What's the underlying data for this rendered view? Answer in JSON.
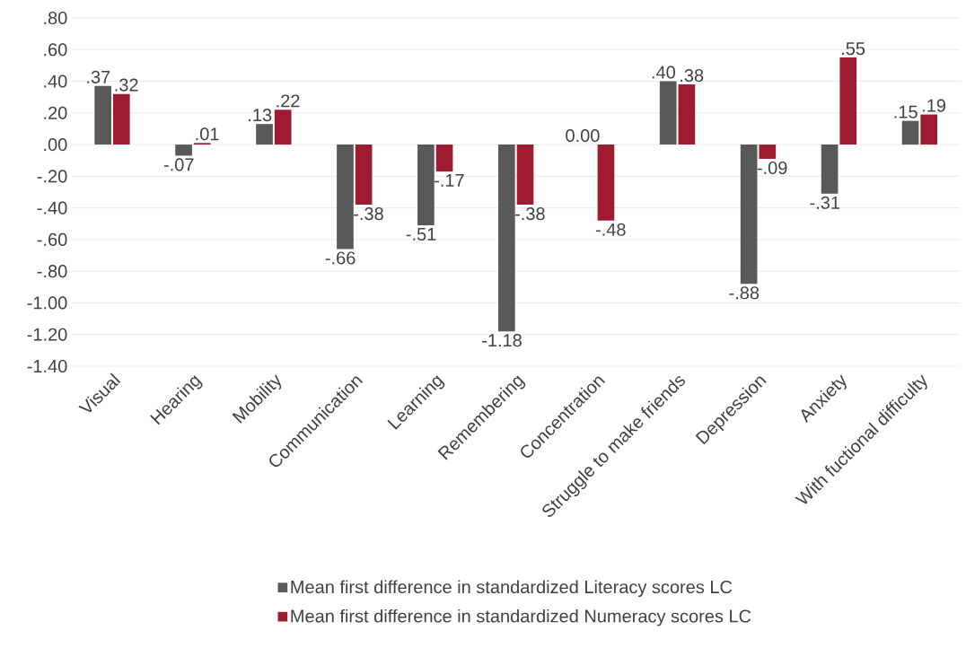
{
  "chart_data": {
    "type": "bar",
    "categories": [
      "Visual",
      "Hearing",
      "Mobility",
      "Communication",
      "Learning",
      "Remembering",
      "Concentration",
      "Struggle to make friends",
      "Depression",
      "Anxiety",
      "With fuctional difficulty"
    ],
    "series": [
      {
        "name": "Mean first difference in standardized Literacy scores LC",
        "color": "#595959",
        "values": [
          0.37,
          -0.07,
          0.13,
          -0.66,
          -0.51,
          -1.18,
          0.0,
          0.4,
          -0.88,
          -0.31,
          0.15
        ],
        "value_labels": [
          ".37",
          "-.07",
          ".13",
          "-.66",
          "-.51",
          "-1.18",
          "0.00",
          ".40",
          "-.88",
          "-.31",
          ".15"
        ]
      },
      {
        "name": "Mean first difference in standardized Numeracy scores LC",
        "color": "#9e1b32",
        "values": [
          0.32,
          0.01,
          0.22,
          -0.38,
          -0.17,
          -0.38,
          -0.48,
          0.38,
          -0.09,
          0.55,
          0.19
        ],
        "value_labels": [
          ".32",
          ".01",
          ".22",
          "-.38",
          "-.17",
          "-.38",
          "-.48",
          ".38",
          "-.09",
          ".55",
          ".19"
        ]
      }
    ],
    "ylim": [
      -1.4,
      0.8
    ],
    "yticks": [
      {
        "value": -1.4,
        "label": "-1.40"
      },
      {
        "value": -1.2,
        "label": "-1.20"
      },
      {
        "value": -1.0,
        "label": "-1.00"
      },
      {
        "value": -0.8,
        "label": "-.80"
      },
      {
        "value": -0.6,
        "label": "-.60"
      },
      {
        "value": -0.4,
        "label": "-.40"
      },
      {
        "value": -0.2,
        "label": "-.20"
      },
      {
        "value": 0.0,
        "label": ".00"
      },
      {
        "value": 0.2,
        "label": ".20"
      },
      {
        "value": 0.4,
        "label": ".40"
      },
      {
        "value": 0.6,
        "label": ".60"
      },
      {
        "value": 0.8,
        "label": ".80"
      }
    ],
    "grid": "y",
    "legend": "bottom"
  }
}
